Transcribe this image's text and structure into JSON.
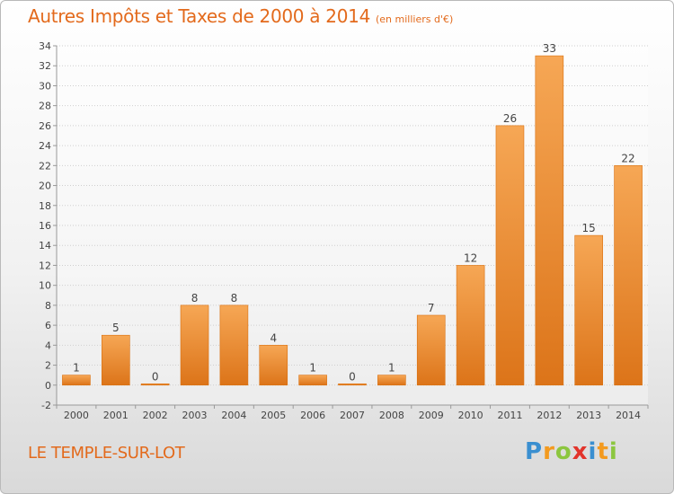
{
  "title": "Autres Impôts et Taxes de 2000 à 2014",
  "unit_note": "(en milliers d'€)",
  "commune": "LE TEMPLE-SUR-LOT",
  "brand": {
    "letters": [
      "P",
      "r",
      "o",
      "x",
      "i",
      "t",
      "i"
    ],
    "colors": [
      "#3a8fd0",
      "#f39a1f",
      "#8cc63f",
      "#e2342b",
      "#3a8fd0",
      "#f39a1f",
      "#8cc63f"
    ]
  },
  "colors": {
    "bar_light": "#f6a755",
    "bar_dark": "#dc7419",
    "axis": "#999999",
    "grid": "#cfcfcf",
    "accent": "#e36a1c"
  },
  "chart_data": {
    "type": "bar",
    "categories": [
      "2000",
      "2001",
      "2002",
      "2003",
      "2004",
      "2005",
      "2006",
      "2007",
      "2008",
      "2009",
      "2010",
      "2011",
      "2012",
      "2013",
      "2014"
    ],
    "values": [
      1,
      5,
      0,
      8,
      8,
      4,
      1,
      0,
      1,
      7,
      12,
      26,
      33,
      15,
      22
    ],
    "title": "Autres Impôts et Taxes de 2000 à 2014",
    "xlabel": "",
    "ylabel": "",
    "ylim": [
      -2,
      34
    ],
    "yticks": [
      -2,
      0,
      2,
      4,
      6,
      8,
      10,
      12,
      14,
      16,
      18,
      20,
      22,
      24,
      26,
      28,
      30,
      32,
      34
    ],
    "grid": true,
    "legend": "none"
  }
}
